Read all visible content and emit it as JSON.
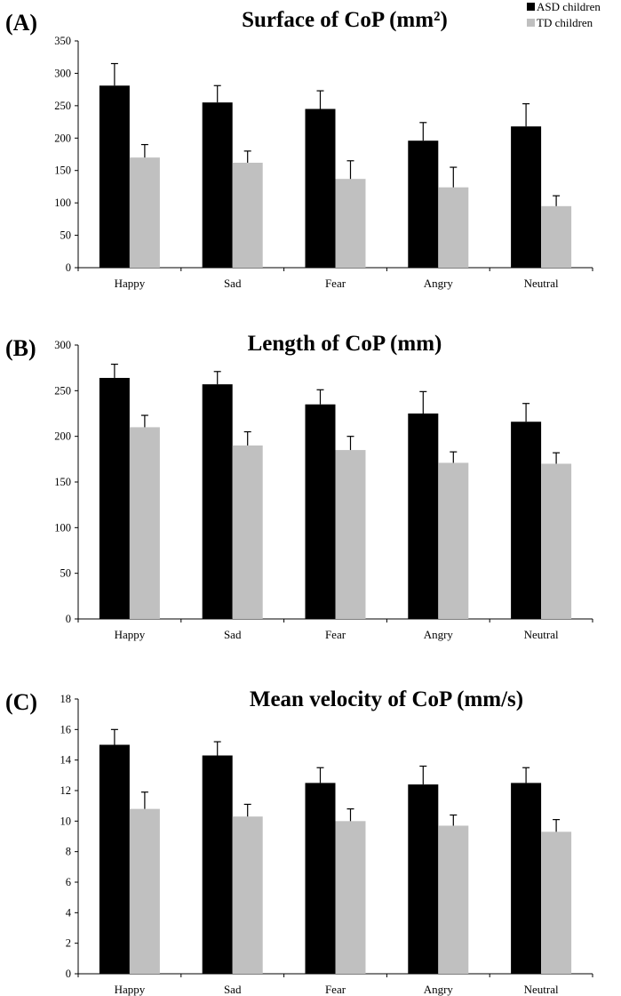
{
  "legend": [
    {
      "label": "ASD children",
      "color": "#000000"
    },
    {
      "label": "TD children",
      "color": "#c0c0c0"
    }
  ],
  "chart_data": [
    {
      "type": "bar",
      "panel_label": "(A)",
      "title": "Surface of CoP (mm²)",
      "categories": [
        "Happy",
        "Sad",
        "Fear",
        "Angry",
        "Neutral"
      ],
      "ylim": [
        0,
        350
      ],
      "yticks": [
        0,
        50,
        100,
        150,
        200,
        250,
        300,
        350
      ],
      "series": [
        {
          "name": "ASD children",
          "color": "#000000",
          "values": [
            281,
            255,
            245,
            196,
            218
          ],
          "errors": [
            34,
            26,
            28,
            28,
            35
          ]
        },
        {
          "name": "TD children",
          "color": "#c0c0c0",
          "values": [
            170,
            162,
            137,
            124,
            95
          ],
          "errors": [
            20,
            18,
            28,
            31,
            16
          ]
        }
      ]
    },
    {
      "type": "bar",
      "panel_label": "(B)",
      "title": "Length of CoP (mm)",
      "categories": [
        "Happy",
        "Sad",
        "Fear",
        "Angry",
        "Neutral"
      ],
      "ylim": [
        0,
        300
      ],
      "yticks": [
        0,
        50,
        100,
        150,
        200,
        250,
        300
      ],
      "series": [
        {
          "name": "ASD children",
          "color": "#000000",
          "values": [
            264,
            257,
            235,
            225,
            216
          ],
          "errors": [
            15,
            14,
            16,
            24,
            20
          ]
        },
        {
          "name": "TD children",
          "color": "#c0c0c0",
          "values": [
            210,
            190,
            185,
            171,
            170
          ],
          "errors": [
            13,
            15,
            15,
            12,
            12
          ]
        }
      ]
    },
    {
      "type": "bar",
      "panel_label": "(C)",
      "title": "Mean velocity of CoP (mm/s)",
      "categories": [
        "Happy",
        "Sad",
        "Fear",
        "Angry",
        "Neutral"
      ],
      "ylim": [
        0,
        18
      ],
      "yticks": [
        0,
        2,
        4,
        6,
        8,
        10,
        12,
        14,
        16,
        18
      ],
      "series": [
        {
          "name": "ASD children",
          "color": "#000000",
          "values": [
            15.0,
            14.3,
            12.5,
            12.4,
            12.5
          ],
          "errors": [
            1.0,
            0.9,
            1.0,
            1.2,
            1.0
          ]
        },
        {
          "name": "TD children",
          "color": "#c0c0c0",
          "values": [
            10.8,
            10.3,
            10.0,
            9.7,
            9.3
          ],
          "errors": [
            1.1,
            0.8,
            0.8,
            0.7,
            0.8
          ]
        }
      ]
    }
  ]
}
